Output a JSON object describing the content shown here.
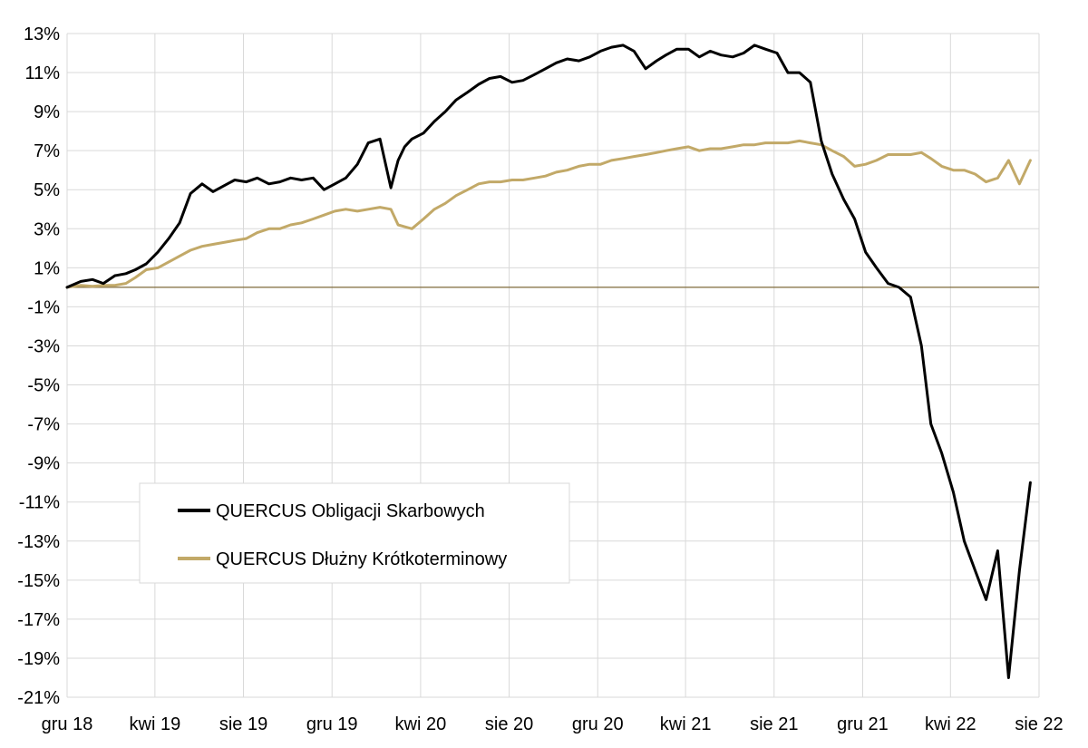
{
  "chart_data": {
    "type": "line",
    "title": "",
    "xlabel": "",
    "ylabel": "",
    "ylim": [
      -21,
      13
    ],
    "yticks": [
      13,
      11,
      9,
      7,
      5,
      3,
      1,
      -1,
      -3,
      -5,
      -7,
      -9,
      -11,
      -13,
      -15,
      -17,
      -19,
      -21
    ],
    "ytick_labels": [
      "13%",
      "11%",
      "9%",
      "7%",
      "5%",
      "3%",
      "1%",
      "-1%",
      "-3%",
      "-5%",
      "-7%",
      "-9%",
      "-11%",
      "-13%",
      "-15%",
      "-17%",
      "-19%",
      "-21%"
    ],
    "xlim": [
      "2018-12-01",
      "2022-08-01"
    ],
    "xticks": [
      "2018-12-01",
      "2019-04-01",
      "2019-08-01",
      "2019-12-01",
      "2020-04-01",
      "2020-08-01",
      "2020-12-01",
      "2021-04-01",
      "2021-08-01",
      "2021-12-01",
      "2022-04-01",
      "2022-08-01"
    ],
    "xtick_labels": [
      "gru 18",
      "kwi 19",
      "sie 19",
      "gru 19",
      "kwi 20",
      "sie 20",
      "gru 20",
      "kwi 21",
      "sie 21",
      "gru 21",
      "kwi 22",
      "sie 22"
    ],
    "grid": true,
    "legend_position": "bottom-left",
    "series": [
      {
        "name": "QUERCUS Obligacji Skarbowych",
        "color": "#000000",
        "x": [
          "2018-12-01",
          "2018-12-20",
          "2019-01-05",
          "2019-01-20",
          "2019-02-05",
          "2019-02-20",
          "2019-03-05",
          "2019-03-20",
          "2019-04-05",
          "2019-04-20",
          "2019-05-05",
          "2019-05-20",
          "2019-06-05",
          "2019-06-20",
          "2019-07-05",
          "2019-07-20",
          "2019-08-05",
          "2019-08-20",
          "2019-09-05",
          "2019-09-20",
          "2019-10-05",
          "2019-10-20",
          "2019-11-05",
          "2019-11-20",
          "2019-12-05",
          "2019-12-20",
          "2020-01-05",
          "2020-01-20",
          "2020-02-05",
          "2020-02-20",
          "2020-03-01",
          "2020-03-10",
          "2020-03-20",
          "2020-04-05",
          "2020-04-20",
          "2020-05-05",
          "2020-05-20",
          "2020-06-05",
          "2020-06-20",
          "2020-07-05",
          "2020-07-20",
          "2020-08-05",
          "2020-08-20",
          "2020-09-05",
          "2020-09-20",
          "2020-10-05",
          "2020-10-20",
          "2020-11-05",
          "2020-11-20",
          "2020-12-05",
          "2020-12-20",
          "2021-01-05",
          "2021-01-20",
          "2021-02-05",
          "2021-02-20",
          "2021-03-05",
          "2021-03-20",
          "2021-04-05",
          "2021-04-20",
          "2021-05-05",
          "2021-05-20",
          "2021-06-05",
          "2021-06-20",
          "2021-07-05",
          "2021-07-20",
          "2021-08-05",
          "2021-08-20",
          "2021-09-05",
          "2021-09-20",
          "2021-10-05",
          "2021-10-20",
          "2021-11-05",
          "2021-11-20",
          "2021-12-05",
          "2021-12-20",
          "2022-01-05",
          "2022-01-20",
          "2022-02-05",
          "2022-02-20",
          "2022-03-05",
          "2022-03-20",
          "2022-04-05",
          "2022-04-20",
          "2022-05-05",
          "2022-05-20",
          "2022-06-05",
          "2022-06-20",
          "2022-07-05",
          "2022-07-20"
        ],
        "values": [
          0.0,
          0.3,
          0.4,
          0.2,
          0.6,
          0.7,
          0.9,
          1.2,
          1.8,
          2.5,
          3.3,
          4.8,
          5.3,
          4.9,
          5.2,
          5.5,
          5.4,
          5.6,
          5.3,
          5.4,
          5.6,
          5.5,
          5.6,
          5.0,
          5.3,
          5.6,
          6.3,
          7.4,
          7.6,
          5.1,
          6.5,
          7.2,
          7.6,
          7.9,
          8.5,
          9.0,
          9.6,
          10.0,
          10.4,
          10.7,
          10.8,
          10.5,
          10.6,
          10.9,
          11.2,
          11.5,
          11.7,
          11.6,
          11.8,
          12.1,
          12.3,
          12.4,
          12.1,
          11.2,
          11.6,
          11.9,
          12.2,
          12.2,
          11.8,
          12.1,
          11.9,
          11.8,
          12.0,
          12.4,
          12.2,
          12.0,
          11.0,
          11.0,
          10.5,
          7.5,
          5.8,
          4.5,
          3.5,
          1.8,
          1.0,
          0.2,
          0.0,
          -0.5,
          -3.0,
          -7.0,
          -8.5,
          -10.5,
          -13.0,
          -14.5,
          -16.0,
          -13.5,
          -20.0,
          -14.5,
          -10.0
        ]
      },
      {
        "name": "QUERCUS Dłużny Krótkoterminowy",
        "color": "#C2A968",
        "x": [
          "2018-12-01",
          "2018-12-20",
          "2019-01-05",
          "2019-01-20",
          "2019-02-05",
          "2019-02-20",
          "2019-03-05",
          "2019-03-20",
          "2019-04-05",
          "2019-04-20",
          "2019-05-05",
          "2019-05-20",
          "2019-06-05",
          "2019-06-20",
          "2019-07-05",
          "2019-07-20",
          "2019-08-05",
          "2019-08-20",
          "2019-09-05",
          "2019-09-20",
          "2019-10-05",
          "2019-10-20",
          "2019-11-05",
          "2019-11-20",
          "2019-12-05",
          "2019-12-20",
          "2020-01-05",
          "2020-01-20",
          "2020-02-05",
          "2020-02-20",
          "2020-03-01",
          "2020-03-10",
          "2020-03-20",
          "2020-04-05",
          "2020-04-20",
          "2020-05-05",
          "2020-05-20",
          "2020-06-05",
          "2020-06-20",
          "2020-07-05",
          "2020-07-20",
          "2020-08-05",
          "2020-08-20",
          "2020-09-05",
          "2020-09-20",
          "2020-10-05",
          "2020-10-20",
          "2020-11-05",
          "2020-11-20",
          "2020-12-05",
          "2020-12-20",
          "2021-01-05",
          "2021-01-20",
          "2021-02-05",
          "2021-02-20",
          "2021-03-05",
          "2021-03-20",
          "2021-04-05",
          "2021-04-20",
          "2021-05-05",
          "2021-05-20",
          "2021-06-05",
          "2021-06-20",
          "2021-07-05",
          "2021-07-20",
          "2021-08-05",
          "2021-08-20",
          "2021-09-05",
          "2021-09-20",
          "2021-10-05",
          "2021-10-20",
          "2021-11-05",
          "2021-11-20",
          "2021-12-05",
          "2021-12-20",
          "2022-01-05",
          "2022-01-20",
          "2022-02-05",
          "2022-02-20",
          "2022-03-05",
          "2022-03-20",
          "2022-04-05",
          "2022-04-20",
          "2022-05-05",
          "2022-05-20",
          "2022-06-05",
          "2022-06-20",
          "2022-07-05",
          "2022-07-20"
        ],
        "values": [
          0.0,
          0.1,
          0.05,
          0.1,
          0.1,
          0.2,
          0.5,
          0.9,
          1.0,
          1.3,
          1.6,
          1.9,
          2.1,
          2.2,
          2.3,
          2.4,
          2.5,
          2.8,
          3.0,
          3.0,
          3.2,
          3.3,
          3.5,
          3.7,
          3.9,
          4.0,
          3.9,
          4.0,
          4.1,
          4.0,
          3.2,
          3.1,
          3.0,
          3.5,
          4.0,
          4.3,
          4.7,
          5.0,
          5.3,
          5.4,
          5.4,
          5.5,
          5.5,
          5.6,
          5.7,
          5.9,
          6.0,
          6.2,
          6.3,
          6.3,
          6.5,
          6.6,
          6.7,
          6.8,
          6.9,
          7.0,
          7.1,
          7.2,
          7.0,
          7.1,
          7.1,
          7.2,
          7.3,
          7.3,
          7.4,
          7.4,
          7.4,
          7.5,
          7.4,
          7.3,
          7.0,
          6.7,
          6.2,
          6.3,
          6.5,
          6.8,
          6.8,
          6.8,
          6.9,
          6.6,
          6.2,
          6.0,
          6.0,
          5.8,
          5.4,
          5.6,
          6.5,
          5.3,
          6.5
        ]
      }
    ]
  }
}
